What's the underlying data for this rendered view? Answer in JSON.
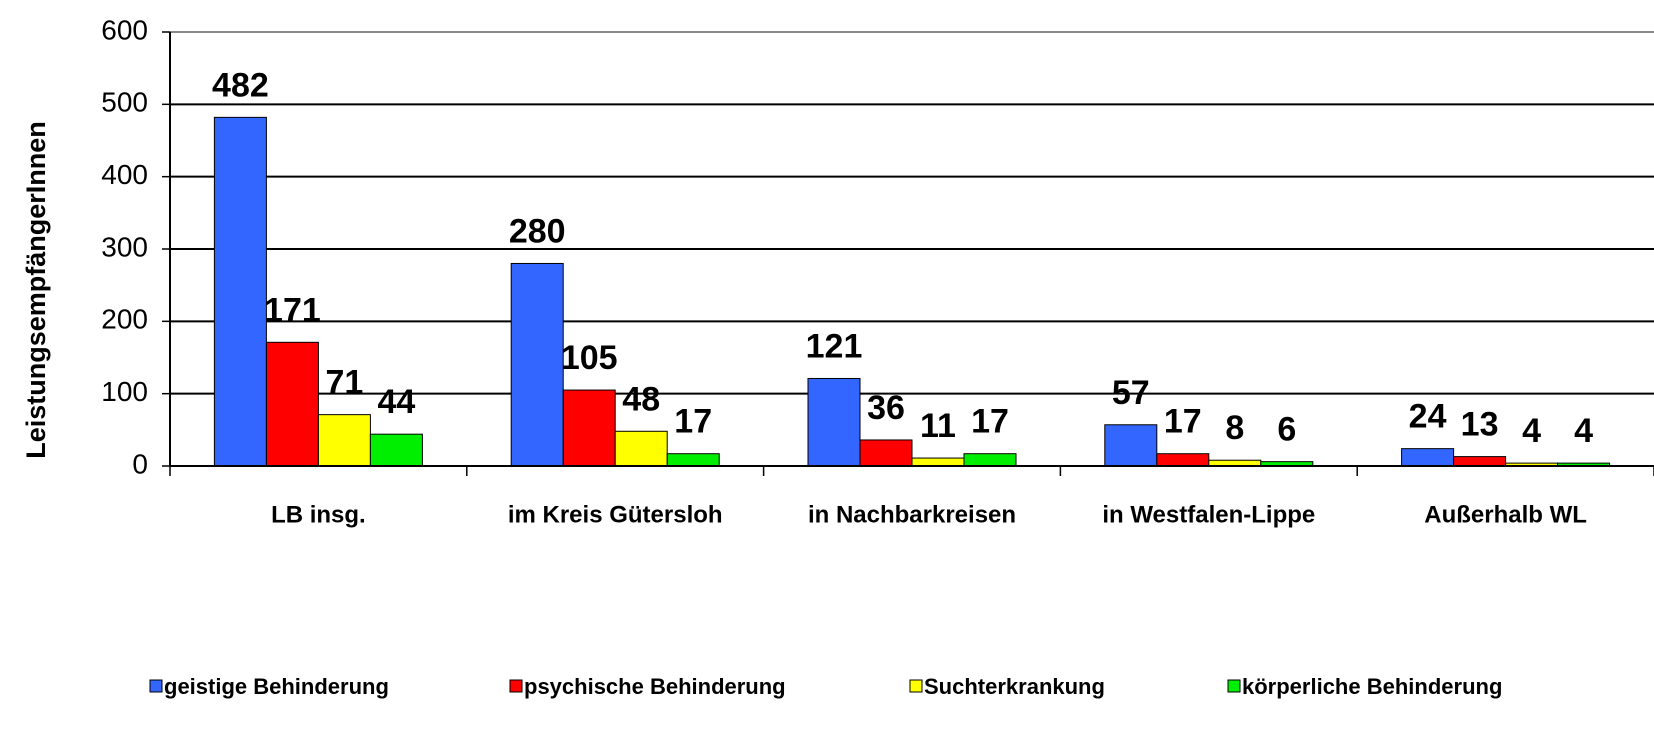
{
  "chart_data": {
    "type": "bar",
    "y_label": "LeistungsempfängerInnen",
    "categories": [
      "LB insg.",
      "im Kreis  Gütersloh",
      "in Nachbarkreisen",
      "in Westfalen-Lippe",
      "Außerhalb  WL"
    ],
    "series": [
      {
        "name": "geistige Behinderung",
        "color": "#3366ff",
        "values": [
          482,
          280,
          121,
          57,
          24
        ]
      },
      {
        "name": "psychische Behinderung",
        "color": "#ff0000",
        "values": [
          171,
          105,
          36,
          17,
          13
        ]
      },
      {
        "name": "Suchterkrankung",
        "color": "#ffff00",
        "values": [
          71,
          48,
          11,
          8,
          4
        ]
      },
      {
        "name": "körperliche Behinderung",
        "color": "#00ee00",
        "values": [
          44,
          17,
          17,
          6,
          4
        ]
      }
    ],
    "ylim": [
      0,
      600
    ],
    "yticks": [
      0,
      100,
      200,
      300,
      400,
      500,
      600
    ],
    "grid": true,
    "legend": "bottom"
  }
}
